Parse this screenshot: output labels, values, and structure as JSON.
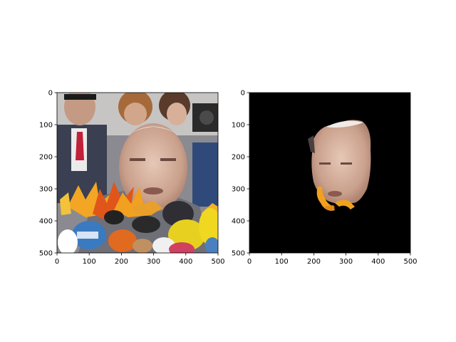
{
  "chart_data": [
    {
      "type": "image",
      "content": "photo-crowd-with-microphones-and-leaves-overlay",
      "xlim": [
        0,
        500
      ],
      "ylim": [
        500,
        0
      ],
      "x_ticks": [
        0,
        100,
        200,
        300,
        400,
        500
      ],
      "y_ticks": [
        0,
        100,
        200,
        300,
        400,
        500
      ],
      "x_tick_labels": [
        "0",
        "100",
        "200",
        "300",
        "400",
        "500"
      ],
      "y_tick_labels": [
        "0",
        "100",
        "200",
        "300",
        "400",
        "500"
      ],
      "grid": false
    },
    {
      "type": "image",
      "content": "segmented-face-on-black-background",
      "xlim": [
        0,
        500
      ],
      "ylim": [
        500,
        0
      ],
      "x_ticks": [
        0,
        100,
        200,
        300,
        400,
        500
      ],
      "y_ticks": [
        0,
        100,
        200,
        300,
        400,
        500
      ],
      "x_tick_labels": [
        "0",
        "100",
        "200",
        "300",
        "400",
        "500"
      ],
      "y_tick_labels": [
        "0",
        "100",
        "200",
        "300",
        "400",
        "500"
      ],
      "grid": false
    }
  ],
  "colors": {
    "background_black": "#000000",
    "skin": "#d9b9a6",
    "leaf_orange": "#f0a020",
    "leaf_red": "#e05a10",
    "suit_gray": "#6f6f78"
  }
}
